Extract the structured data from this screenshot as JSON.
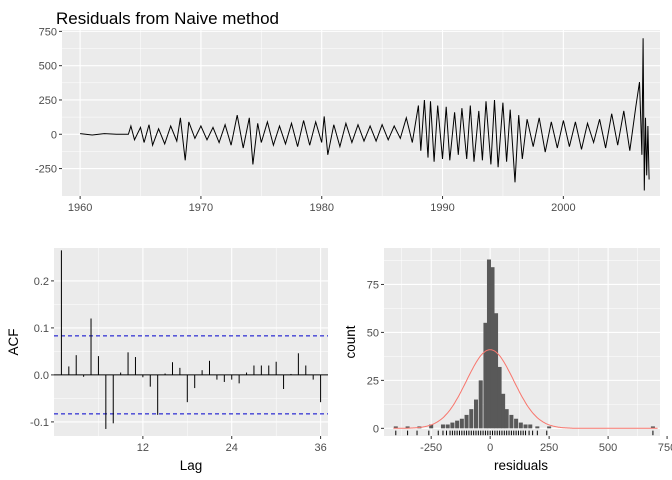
{
  "chart_data": [
    {
      "type": "line",
      "title": "Residuals from Naive method",
      "xlabel": "",
      "ylabel": "",
      "xlim": [
        1958.5,
        2008.0
      ],
      "ylim": [
        -450,
        760
      ],
      "x_ticks": [
        1960,
        1970,
        1980,
        1990,
        2000
      ],
      "x_tick_labels": [
        "1960",
        "1970",
        "1980",
        "1990",
        "2000"
      ],
      "y_ticks": [
        750,
        500,
        250,
        0,
        -250
      ],
      "y_tick_labels": [
        "750",
        "500",
        "250",
        "0",
        "-250"
      ],
      "grid": true,
      "series": [
        {
          "x": [
            1960.0,
            1961.0,
            1962.0,
            1963.0,
            1964.0,
            1964.2,
            1964.5,
            1965.0,
            1965.3,
            1965.7,
            1966.0,
            1966.5,
            1967.0,
            1967.5,
            1968.0,
            1968.3,
            1968.7,
            1969.0,
            1969.5,
            1970.0,
            1970.5,
            1971.0,
            1971.5,
            1972.0,
            1972.5,
            1973.0,
            1973.5,
            1974.0,
            1974.3,
            1974.7,
            1975.0,
            1975.5,
            1976.0,
            1976.5,
            1977.0,
            1977.5,
            1978.0,
            1978.5,
            1979.0,
            1979.5,
            1980.0,
            1980.2,
            1980.5,
            1981.0,
            1981.5,
            1982.0,
            1982.5,
            1983.0,
            1983.5,
            1984.0,
            1984.5,
            1985.0,
            1985.5,
            1986.0,
            1986.5,
            1987.0,
            1987.5,
            1988.0,
            1988.2,
            1988.5,
            1988.8,
            1989.0,
            1989.3,
            1989.6,
            1990.0,
            1990.3,
            1990.6,
            1991.0,
            1991.3,
            1991.6,
            1992.0,
            1992.3,
            1992.6,
            1993.0,
            1993.3,
            1993.6,
            1994.0,
            1994.3,
            1994.6,
            1995.0,
            1995.3,
            1995.6,
            1996.0,
            1996.3,
            1996.6,
            1997.0,
            1997.5,
            1998.0,
            1998.5,
            1999.0,
            1999.5,
            2000.0,
            2000.5,
            2001.0,
            2001.5,
            2002.0,
            2002.5,
            2003.0,
            2003.5,
            2004.0,
            2004.5,
            2005.0,
            2005.5,
            2006.0,
            2006.3,
            2006.5,
            2006.6,
            2006.7,
            2006.8,
            2006.9,
            2007.0,
            2007.1
          ],
          "y": [
            5,
            -5,
            5,
            0,
            0,
            60,
            -40,
            50,
            -60,
            70,
            -80,
            40,
            -70,
            60,
            -50,
            120,
            -190,
            90,
            -30,
            60,
            -40,
            50,
            -60,
            70,
            -80,
            140,
            -100,
            120,
            -220,
            80,
            -60,
            90,
            -80,
            60,
            -70,
            80,
            -90,
            100,
            -80,
            90,
            -60,
            130,
            -150,
            70,
            -90,
            80,
            -60,
            70,
            -50,
            60,
            -50,
            70,
            -40,
            60,
            -30,
            120,
            -60,
            210,
            -120,
            250,
            -170,
            240,
            -200,
            210,
            -180,
            200,
            -190,
            160,
            -150,
            190,
            -180,
            210,
            -200,
            170,
            -190,
            240,
            -220,
            250,
            -240,
            230,
            -200,
            180,
            -350,
            140,
            -180,
            110,
            -90,
            120,
            -130,
            90,
            -100,
            100,
            -90,
            90,
            -110,
            80,
            -60,
            110,
            -100,
            150,
            -80,
            170,
            -120,
            200,
            380,
            -150,
            700,
            -410,
            120,
            -300,
            60,
            -330
          ]
        }
      ]
    },
    {
      "type": "bar",
      "xlabel": "Lag",
      "ylabel": "ACF",
      "xlim": [
        0,
        37
      ],
      "ylim": [
        -0.13,
        0.27
      ],
      "x_ticks": [
        12,
        24,
        36
      ],
      "x_tick_labels": [
        "12",
        "24",
        "36"
      ],
      "y_ticks": [
        0.2,
        0.1,
        0.0,
        -0.1
      ],
      "y_tick_labels": [
        "0.2",
        "0.1",
        "0.0",
        "-0.1"
      ],
      "confidence_limit": 0.083,
      "grid": true,
      "categories": [
        1,
        2,
        3,
        4,
        5,
        6,
        7,
        8,
        9,
        10,
        11,
        12,
        13,
        14,
        15,
        16,
        17,
        18,
        19,
        20,
        21,
        22,
        23,
        24,
        25,
        26,
        27,
        28,
        29,
        30,
        31,
        32,
        33,
        34,
        35,
        36
      ],
      "values": [
        0.265,
        0.018,
        0.042,
        -0.004,
        0.12,
        0.04,
        -0.115,
        -0.103,
        0.005,
        0.048,
        0.038,
        -0.005,
        -0.025,
        -0.085,
        0.003,
        0.027,
        0.015,
        -0.058,
        -0.028,
        0.01,
        0.03,
        -0.01,
        -0.015,
        -0.01,
        -0.018,
        0.005,
        0.02,
        0.02,
        0.02,
        0.028,
        -0.03,
        0.002,
        0.046,
        0.02,
        -0.01,
        -0.058
      ]
    },
    {
      "type": "bar",
      "xlabel": "residuals",
      "ylabel": "count",
      "xlim": [
        -450,
        720
      ],
      "ylim": [
        -4,
        94
      ],
      "x_ticks": [
        -250,
        0,
        250,
        500,
        750
      ],
      "x_tick_labels": [
        "-250",
        "0",
        "250",
        "500",
        "750"
      ],
      "y_ticks": [
        0,
        25,
        50,
        75
      ],
      "y_tick_labels": [
        "0",
        "25",
        "50",
        "75"
      ],
      "grid": true,
      "bin_width": 17,
      "bin_centers": [
        -400,
        -350,
        -300,
        -250,
        -200,
        -180,
        -160,
        -140,
        -120,
        -100,
        -80,
        -60,
        -40,
        -20,
        -5,
        10,
        25,
        40,
        55,
        70,
        90,
        110,
        130,
        150,
        170,
        200,
        250,
        690
      ],
      "values": [
        1,
        1,
        1,
        2,
        2,
        2,
        3,
        4,
        5,
        7,
        10,
        15,
        25,
        55,
        88,
        84,
        60,
        32,
        18,
        10,
        7,
        5,
        3,
        2,
        2,
        1,
        1,
        1
      ],
      "normal_curve": {
        "mean": 0,
        "sd": 100,
        "peak": 41
      },
      "rug": [
        -400,
        -350,
        -310,
        -260,
        -220,
        -200,
        -185,
        -170,
        -160,
        -150,
        -140,
        -130,
        -120,
        -110,
        -100,
        -90,
        -80,
        -70,
        -60,
        -50,
        -40,
        -30,
        -20,
        -10,
        0,
        10,
        20,
        30,
        40,
        50,
        60,
        70,
        80,
        90,
        100,
        110,
        120,
        130,
        140,
        150,
        165,
        180,
        200,
        240,
        690
      ]
    }
  ],
  "colors": {
    "panel_bg": "#ebebeb",
    "grid": "#ffffff",
    "line": "#000000",
    "bar_fill": "#595959",
    "ci_line": "#0000cc",
    "density_curve": "#f8766d"
  }
}
